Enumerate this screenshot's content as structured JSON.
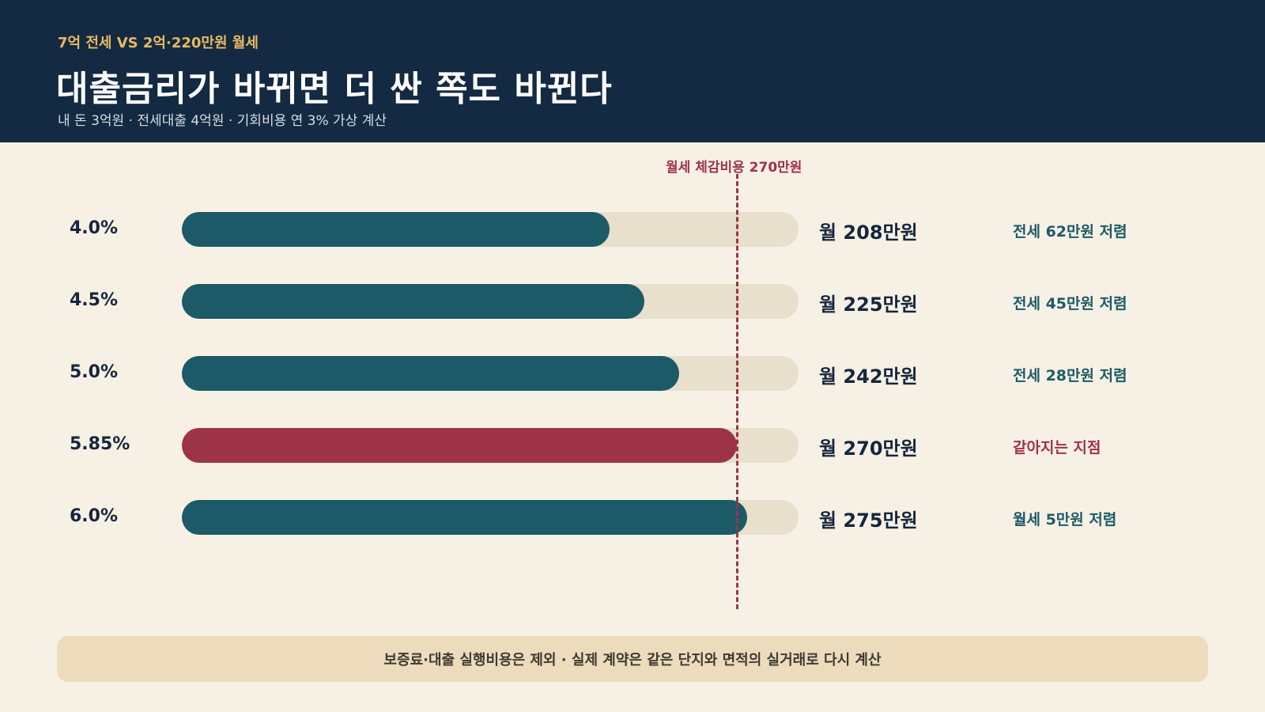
{
  "header": {
    "eyebrow": "7억 전세 VS 2억·220만원 월세",
    "title": "대출금리가 바뀌면 더 싼 쪽도 바뀐다",
    "subtitle": "내 돈 3억원 · 전세대출 4억원 · 기회비용 연 3% 가상 계산"
  },
  "chart_data": {
    "type": "bar",
    "orientation": "horizontal",
    "categories": [
      "4.0%",
      "4.5%",
      "5.0%",
      "5.85%",
      "6.0%"
    ],
    "values": [
      208,
      225,
      242,
      270,
      275
    ],
    "value_labels": [
      "월 208만원",
      "월 225만원",
      "월 242만원",
      "월 270만원",
      "월 275만원"
    ],
    "notes": [
      "전세 62만원 저렴",
      "전세 45만원 저렴",
      "전세 28만원 저렴",
      "같아지는 지점",
      "월세 5만원 저렴"
    ],
    "highlight_index": 3,
    "xlim": [
      0,
      300
    ],
    "reference_line": {
      "value": 270,
      "label": "월세 체감비용 270만원"
    },
    "grid": false,
    "colors": {
      "bar": "#1d5a68",
      "highlight": "#9c3347",
      "track": "#e8dfcc",
      "reference": "#a0324a"
    }
  },
  "footer": {
    "text": "보증료·대출 실행비용은 제외 · 실제 계약은 같은 단지와 면적의 실거래로 다시 계산"
  }
}
